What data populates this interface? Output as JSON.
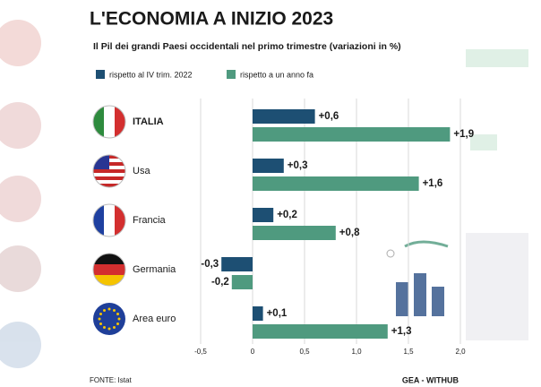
{
  "chart_data": {
    "type": "bar",
    "orientation": "horizontal",
    "title": "L'ECONOMIA A INIZIO 2023",
    "subtitle": "Il Pil dei grandi Paesi occidentali nel primo trimestre (variazioni in %)",
    "categories": [
      "ITALIA",
      "Usa",
      "Francia",
      "Germania",
      "Area euro"
    ],
    "series": [
      {
        "name": "rispetto al IV trim. 2022",
        "color": "#1d4f73",
        "values": [
          0.6,
          0.3,
          0.2,
          -0.3,
          0.1
        ],
        "value_labels": [
          "+0,6",
          "+0,3",
          "+0,2",
          "-0,3",
          "+0,1"
        ]
      },
      {
        "name": "rispetto a un anno fa",
        "color": "#4f9a7f",
        "values": [
          1.9,
          1.6,
          0.8,
          -0.2,
          1.3
        ],
        "value_labels": [
          "+1,9",
          "+1,6",
          "+0,8",
          "-0,2",
          "+1,3"
        ]
      }
    ],
    "xlim": [
      -0.5,
      2.0
    ],
    "xticks": [
      {
        "value": -0.5,
        "label": "-0,5"
      },
      0,
      {
        "value": 0.5,
        "label": "0,5"
      },
      {
        "value": 1.0,
        "label": "1,0"
      },
      {
        "value": 1.5,
        "label": "1,5"
      },
      {
        "value": 2.0,
        "label": "2,0"
      }
    ],
    "grid": true,
    "legend": "top",
    "source": "FONTE: Istat",
    "credit": "GEA - WITHUB"
  }
}
